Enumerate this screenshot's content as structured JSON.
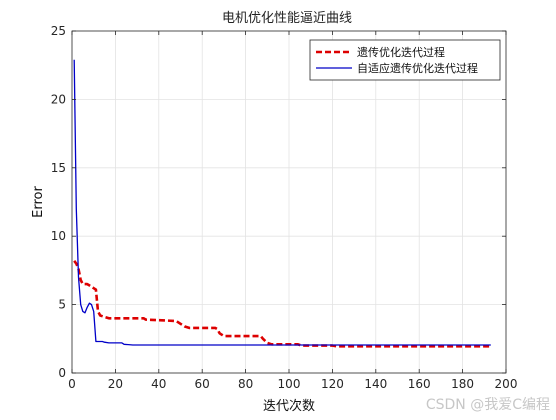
{
  "chart_data": {
    "type": "line",
    "title": "电机优化性能逼近曲线",
    "xlabel": "迭代次数",
    "ylabel": "Error",
    "xlim": [
      0,
      200
    ],
    "ylim": [
      0,
      25
    ],
    "xticks": [
      0,
      20,
      40,
      60,
      80,
      100,
      120,
      140,
      160,
      180,
      200
    ],
    "yticks": [
      0,
      5,
      10,
      15,
      20,
      25
    ],
    "grid": true,
    "legend_position": "top-right",
    "series": [
      {
        "name": "遗传优化迭代过程",
        "color": "#dd0000",
        "style": "dashed",
        "points": [
          [
            1,
            8.2
          ],
          [
            2,
            8.0
          ],
          [
            3,
            7.6
          ],
          [
            4,
            6.8
          ],
          [
            5,
            6.5
          ],
          [
            7,
            6.5
          ],
          [
            8,
            6.4
          ],
          [
            9,
            6.3
          ],
          [
            10,
            6.2
          ],
          [
            11,
            6.1
          ],
          [
            12,
            4.5
          ],
          [
            13,
            4.2
          ],
          [
            15,
            4.1
          ],
          [
            17,
            4.0
          ],
          [
            33,
            4.0
          ],
          [
            34,
            3.9
          ],
          [
            48,
            3.8
          ],
          [
            50,
            3.6
          ],
          [
            52,
            3.4
          ],
          [
            54,
            3.3
          ],
          [
            56,
            3.3
          ],
          [
            66,
            3.3
          ],
          [
            67,
            3.2
          ],
          [
            68,
            2.9
          ],
          [
            70,
            2.7
          ],
          [
            87,
            2.7
          ],
          [
            88,
            2.5
          ],
          [
            90,
            2.2
          ],
          [
            92,
            2.1
          ],
          [
            104,
            2.1
          ],
          [
            106,
            2.0
          ],
          [
            120,
            2.0
          ],
          [
            122,
            1.95
          ],
          [
            193,
            1.95
          ]
        ]
      },
      {
        "name": "自适应遗传优化迭代过程",
        "color": "#0000c8",
        "style": "solid",
        "points": [
          [
            1,
            22.9
          ],
          [
            2,
            12.0
          ],
          [
            3,
            7.0
          ],
          [
            4,
            5.0
          ],
          [
            5,
            4.5
          ],
          [
            6,
            4.4
          ],
          [
            7,
            4.8
          ],
          [
            8,
            5.1
          ],
          [
            9,
            5.0
          ],
          [
            10,
            4.5
          ],
          [
            11,
            2.3
          ],
          [
            14,
            2.3
          ],
          [
            15,
            2.25
          ],
          [
            17,
            2.2
          ],
          [
            23,
            2.2
          ],
          [
            24,
            2.1
          ],
          [
            28,
            2.05
          ],
          [
            193,
            2.05
          ]
        ]
      }
    ]
  },
  "watermark": "CSDN @我爱C编程"
}
